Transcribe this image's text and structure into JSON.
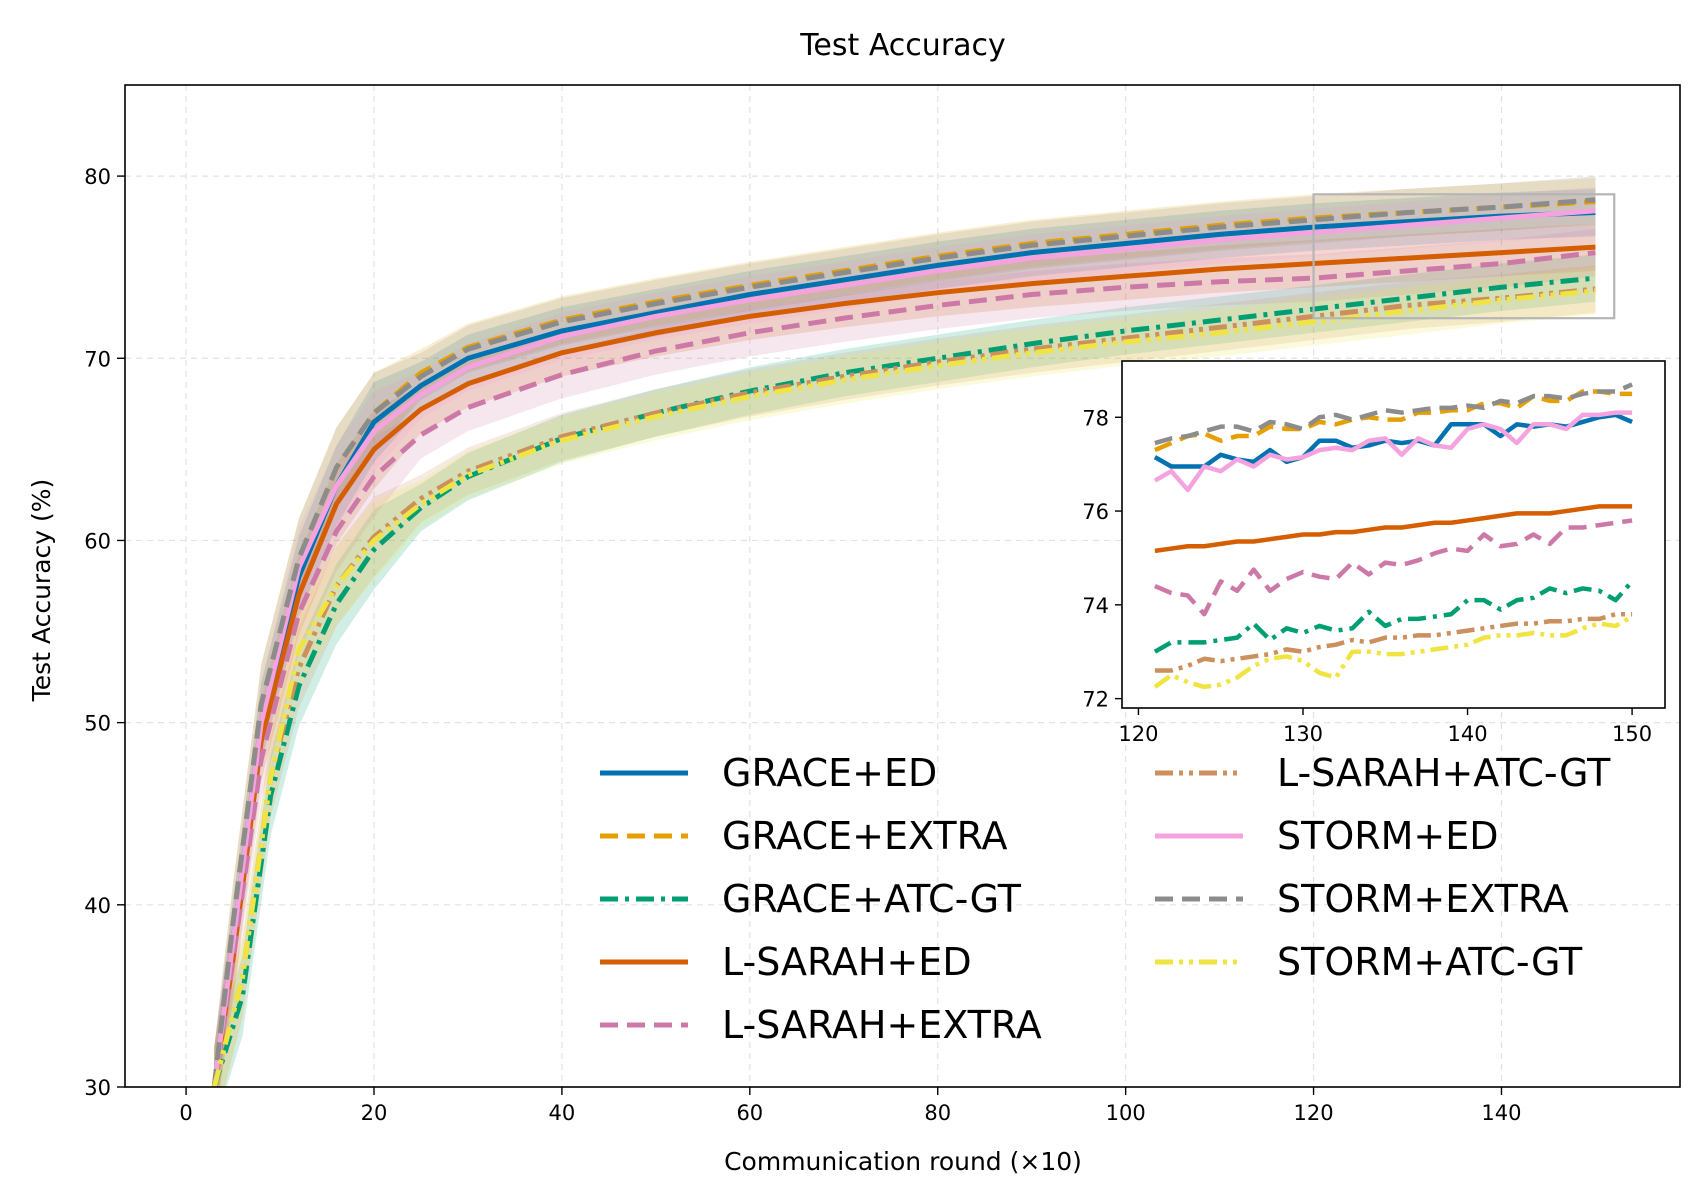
{
  "chart_data": {
    "type": "line",
    "title": "Test Accuracy",
    "xlabel": "Communication round (×10)",
    "ylabel": "Test Accuracy (%)",
    "xlim": [
      -6.5,
      159
    ],
    "ylim": [
      30,
      85
    ],
    "xticks": [
      0,
      20,
      40,
      60,
      80,
      100,
      120,
      140
    ],
    "xtick_labels": [
      "0",
      "20",
      "40",
      "60",
      "80",
      "100",
      "120",
      "140"
    ],
    "yticks": [
      30,
      40,
      50,
      60,
      70,
      80
    ],
    "ytick_labels": [
      "30",
      "40",
      "50",
      "60",
      "70",
      "80"
    ],
    "grid": true,
    "legend_position": "lower-right",
    "series": [
      {
        "name": "GRACE+ED",
        "color": "#0072B2",
        "dash": "solid",
        "x": [
          3,
          5,
          8,
          12,
          16,
          20,
          25,
          30,
          40,
          50,
          60,
          70,
          80,
          90,
          100,
          110,
          120,
          130,
          140,
          150
        ],
        "y": [
          30,
          38,
          50,
          58,
          63,
          66.5,
          68.5,
          70,
          71.5,
          72.5,
          73.5,
          74.3,
          75.1,
          75.8,
          76.3,
          76.8,
          77.2,
          77.5,
          77.8,
          78.0
        ]
      },
      {
        "name": "GRACE+EXTRA",
        "color": "#E69F00",
        "dash": "dashed",
        "x": [
          3,
          5,
          8,
          12,
          16,
          20,
          25,
          30,
          40,
          50,
          60,
          70,
          80,
          90,
          100,
          110,
          120,
          130,
          140,
          150
        ],
        "y": [
          30,
          39,
          51,
          59,
          64,
          67,
          69.2,
          70.6,
          72.1,
          73.1,
          74,
          74.8,
          75.6,
          76.3,
          76.8,
          77.3,
          77.7,
          78,
          78.3,
          78.6
        ]
      },
      {
        "name": "GRACE+ATC-GT",
        "color": "#009E73",
        "dash": "dashdot",
        "x": [
          3,
          6,
          9,
          12,
          16,
          20,
          25,
          30,
          40,
          50,
          60,
          70,
          80,
          90,
          100,
          110,
          120,
          130,
          140,
          150
        ],
        "y": [
          30,
          35,
          46,
          52,
          56.5,
          59.5,
          61.8,
          63.5,
          65.6,
          67,
          68.2,
          69.2,
          70,
          70.8,
          71.5,
          72.1,
          72.7,
          73.3,
          73.9,
          74.4
        ]
      },
      {
        "name": "L-SARAH+ED",
        "color": "#D55E00",
        "dash": "solid",
        "x": [
          3,
          5,
          8,
          12,
          16,
          20,
          25,
          30,
          40,
          50,
          60,
          70,
          80,
          90,
          100,
          110,
          120,
          130,
          140,
          150
        ],
        "y": [
          30,
          37,
          49,
          57,
          62,
          65,
          67.2,
          68.6,
          70.3,
          71.4,
          72.3,
          73,
          73.6,
          74.1,
          74.5,
          74.9,
          75.2,
          75.5,
          75.8,
          76.1
        ]
      },
      {
        "name": "L-SARAH+EXTRA",
        "color": "#CC79A7",
        "dash": "dashed",
        "x": [
          3,
          5,
          8,
          12,
          16,
          20,
          25,
          30,
          40,
          50,
          60,
          70,
          80,
          90,
          100,
          110,
          120,
          130,
          140,
          150
        ],
        "y": [
          30,
          37,
          48,
          56,
          60.5,
          63.5,
          65.8,
          67.3,
          69.1,
          70.4,
          71.4,
          72.2,
          72.9,
          73.5,
          73.9,
          74.2,
          74.4,
          74.8,
          75.2,
          75.8
        ]
      },
      {
        "name": "L-SARAH+ATC-GT",
        "color": "#CC8F5E",
        "dash": "dashdotdot",
        "x": [
          3,
          6,
          9,
          12,
          16,
          20,
          25,
          30,
          40,
          50,
          60,
          70,
          80,
          90,
          100,
          110,
          120,
          130,
          140,
          150
        ],
        "y": [
          30,
          36,
          47,
          53,
          57.5,
          60.2,
          62.3,
          63.8,
          65.7,
          67,
          68.1,
          69,
          69.8,
          70.5,
          71.1,
          71.7,
          72.3,
          72.9,
          73.3,
          73.8
        ]
      },
      {
        "name": "STORM+ED",
        "color": "#F5A3DE",
        "dash": "solid",
        "x": [
          3,
          5,
          8,
          12,
          16,
          20,
          25,
          30,
          40,
          50,
          60,
          70,
          80,
          90,
          100,
          110,
          120,
          130,
          140,
          150
        ],
        "y": [
          30,
          38,
          50,
          58.5,
          63,
          66,
          68,
          69.5,
          71.2,
          72.3,
          73.2,
          74,
          74.8,
          75.5,
          76,
          76.5,
          76.9,
          77.3,
          77.7,
          78.1
        ]
      },
      {
        "name": "STORM+EXTRA",
        "color": "#8C8C8C",
        "dash": "dashed",
        "x": [
          3,
          5,
          8,
          12,
          16,
          20,
          25,
          30,
          40,
          50,
          60,
          70,
          80,
          90,
          100,
          110,
          120,
          130,
          140,
          150
        ],
        "y": [
          30,
          39,
          51,
          59,
          64,
          67,
          69,
          70.5,
          72,
          73,
          73.9,
          74.7,
          75.5,
          76.2,
          76.7,
          77.2,
          77.6,
          78,
          78.3,
          78.7
        ]
      },
      {
        "name": "STORM+ATC-GT",
        "color": "#F0E442",
        "dash": "dashdotdot",
        "x": [
          3,
          6,
          9,
          12,
          16,
          20,
          25,
          30,
          40,
          50,
          60,
          70,
          80,
          90,
          100,
          110,
          120,
          130,
          140,
          150
        ],
        "y": [
          30,
          36,
          47,
          54,
          57.5,
          60,
          62,
          63.6,
          65.5,
          66.8,
          67.9,
          68.8,
          69.6,
          70.3,
          70.9,
          71.4,
          72,
          72.6,
          73.2,
          73.7
        ]
      }
    ],
    "inset": {
      "xlim": [
        119,
        152
      ],
      "ylim": [
        71.8,
        79.2
      ],
      "xticks": [
        120,
        130,
        140,
        150
      ],
      "xtick_labels": [
        "120",
        "130",
        "140",
        "150"
      ],
      "yticks": [
        72,
        74,
        76,
        78
      ],
      "ytick_labels": [
        "72",
        "74",
        "76",
        "78"
      ],
      "zoom_region": {
        "x": [
          120,
          152
        ],
        "y": [
          72.2,
          79
        ]
      },
      "x": [
        121,
        122,
        123,
        124,
        125,
        126,
        127,
        128,
        129,
        130,
        131,
        132,
        133,
        134,
        135,
        136,
        137,
        138,
        139,
        140,
        141,
        142,
        143,
        144,
        145,
        146,
        147,
        148,
        149,
        150
      ],
      "series": [
        {
          "name": "GRACE+ED",
          "y": [
            77.15,
            76.95,
            76.95,
            76.95,
            77.2,
            77.1,
            77.05,
            77.3,
            77.05,
            77.15,
            77.5,
            77.5,
            77.35,
            77.4,
            77.5,
            77.45,
            77.5,
            77.4,
            77.85,
            77.85,
            77.85,
            77.6,
            77.85,
            77.8,
            77.85,
            77.8,
            77.9,
            78.0,
            78.05,
            77.9
          ]
        },
        {
          "name": "GRACE+EXTRA",
          "y": [
            77.3,
            77.45,
            77.6,
            77.65,
            77.5,
            77.6,
            77.6,
            77.8,
            77.75,
            77.75,
            77.9,
            77.85,
            77.95,
            78.0,
            77.95,
            77.95,
            78.1,
            78.1,
            78.15,
            78.15,
            78.3,
            78.3,
            78.2,
            78.45,
            78.35,
            78.35,
            78.55,
            78.55,
            78.5,
            78.5
          ]
        },
        {
          "name": "GRACE+ATC-GT",
          "y": [
            73.0,
            73.2,
            73.2,
            73.2,
            73.25,
            73.3,
            73.6,
            73.25,
            73.5,
            73.4,
            73.55,
            73.45,
            73.5,
            73.85,
            73.55,
            73.7,
            73.7,
            73.75,
            73.8,
            74.1,
            74.1,
            73.9,
            74.1,
            74.15,
            74.35,
            74.25,
            74.35,
            74.3,
            74.1,
            74.5
          ]
        },
        {
          "name": "L-SARAH+ED",
          "y": [
            75.15,
            75.2,
            75.25,
            75.25,
            75.3,
            75.35,
            75.35,
            75.4,
            75.45,
            75.5,
            75.5,
            75.55,
            75.55,
            75.6,
            75.65,
            75.65,
            75.7,
            75.75,
            75.75,
            75.8,
            75.85,
            75.9,
            75.95,
            75.95,
            75.95,
            76.0,
            76.05,
            76.1,
            76.1,
            76.1
          ]
        },
        {
          "name": "L-SARAH+EXTRA",
          "y": [
            74.4,
            74.25,
            74.2,
            73.8,
            74.5,
            74.3,
            74.75,
            74.3,
            74.55,
            74.7,
            74.6,
            74.55,
            74.9,
            74.65,
            74.9,
            74.85,
            74.95,
            75.1,
            75.2,
            75.15,
            75.5,
            75.25,
            75.3,
            75.5,
            75.3,
            75.65,
            75.65,
            75.7,
            75.75,
            75.8
          ]
        },
        {
          "name": "L-SARAH+ATC-GT",
          "y": [
            72.6,
            72.6,
            72.7,
            72.85,
            72.8,
            72.85,
            72.9,
            72.95,
            73.05,
            73.0,
            73.1,
            73.15,
            73.25,
            73.2,
            73.3,
            73.3,
            73.35,
            73.35,
            73.4,
            73.45,
            73.5,
            73.55,
            73.6,
            73.6,
            73.65,
            73.65,
            73.7,
            73.7,
            73.8,
            73.8
          ]
        },
        {
          "name": "STORM+ED",
          "y": [
            76.65,
            76.85,
            76.45,
            76.95,
            76.85,
            77.1,
            76.95,
            77.2,
            77.1,
            77.15,
            77.3,
            77.35,
            77.3,
            77.5,
            77.55,
            77.2,
            77.55,
            77.4,
            77.35,
            77.75,
            77.85,
            77.75,
            77.45,
            77.85,
            77.85,
            77.75,
            78.05,
            78.05,
            78.1,
            78.1
          ]
        },
        {
          "name": "STORM+EXTRA",
          "y": [
            77.45,
            77.55,
            77.6,
            77.7,
            77.8,
            77.8,
            77.7,
            77.9,
            77.85,
            77.75,
            78.0,
            78.05,
            77.95,
            78.05,
            78.15,
            78.1,
            78.15,
            78.2,
            78.2,
            78.25,
            78.2,
            78.35,
            78.3,
            78.45,
            78.45,
            78.4,
            78.5,
            78.55,
            78.55,
            78.7
          ]
        },
        {
          "name": "STORM+ATC-GT",
          "y": [
            72.25,
            72.5,
            72.35,
            72.25,
            72.3,
            72.45,
            72.7,
            72.85,
            72.9,
            72.8,
            72.55,
            72.45,
            73.0,
            73.0,
            72.95,
            72.95,
            73.0,
            73.05,
            73.1,
            73.15,
            73.3,
            73.35,
            73.35,
            73.4,
            73.35,
            73.35,
            73.5,
            73.6,
            73.55,
            73.75
          ]
        }
      ]
    }
  }
}
